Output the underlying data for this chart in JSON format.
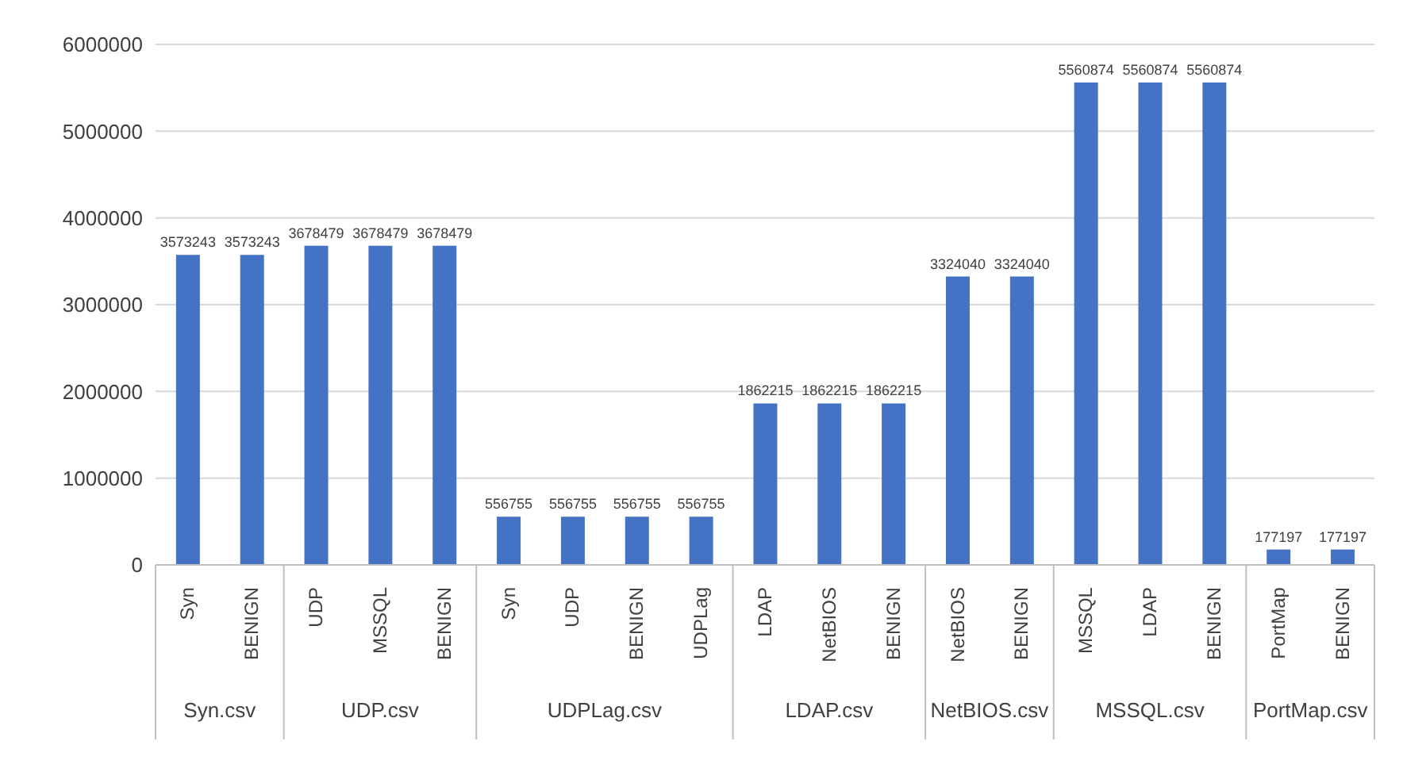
{
  "chart_data": {
    "type": "bar",
    "categories": [
      "Syn",
      "BENIGN",
      "UDP",
      "MSSQL",
      "BENIGN",
      "Syn",
      "UDP",
      "BENIGN",
      "UDPLag",
      "LDAP",
      "NetBIOS",
      "BENIGN",
      "NetBIOS",
      "BENIGN",
      "MSSQL",
      "LDAP",
      "BENIGN",
      "PortMap",
      "BENIGN"
    ],
    "values": [
      3573243,
      3573243,
      3678479,
      3678479,
      3678479,
      556755,
      556755,
      556755,
      556755,
      1862215,
      1862215,
      1862215,
      3324040,
      3324040,
      5560874,
      5560874,
      5560874,
      177197,
      177197
    ],
    "color": "#4472c4",
    "ylim": [
      0,
      6000000
    ],
    "yticks": [
      0,
      1000000,
      2000000,
      3000000,
      4000000,
      5000000,
      6000000
    ],
    "grid": "y",
    "data_labels": true,
    "annotations": [
      "Syn.csv",
      "UDP.csv",
      "UDPLag.csv",
      "LDAP.csv",
      "NetBIOS.csv",
      "MSSQL.csv",
      "PortMap.csv"
    ]
  }
}
